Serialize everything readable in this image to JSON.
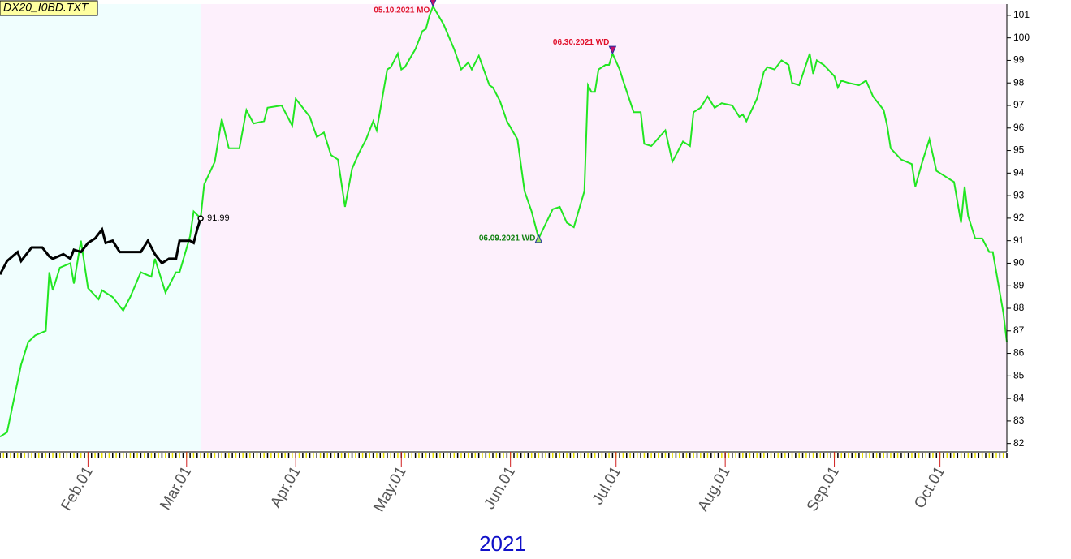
{
  "chart_data": {
    "type": "line",
    "title": "DX20_I0BD.TXT",
    "year_label": "2021",
    "xlim": [
      "2021-01-07",
      "2021-10-20"
    ],
    "xticks": [
      {
        "value": "2021-02-01",
        "label": "Feb.01"
      },
      {
        "value": "2021-03-01",
        "label": "Mar.01"
      },
      {
        "value": "2021-04-01",
        "label": "Apr.01"
      },
      {
        "value": "2021-05-01",
        "label": "May.01"
      },
      {
        "value": "2021-06-01",
        "label": "Jun.01"
      },
      {
        "value": "2021-07-01",
        "label": "Jul.01"
      },
      {
        "value": "2021-08-01",
        "label": "Aug.01"
      },
      {
        "value": "2021-09-01",
        "label": "Sep.01"
      },
      {
        "value": "2021-10-01",
        "label": "Oct.01"
      }
    ],
    "ylim": [
      81.7,
      101.5
    ],
    "yticks": [
      82,
      83,
      84,
      85,
      86,
      87,
      88,
      89,
      90,
      91,
      92,
      93,
      94,
      95,
      96,
      97,
      98,
      99,
      100,
      101
    ],
    "background_colors": [
      "#f0fefe",
      "#fdf0fc"
    ],
    "series": [
      {
        "color": "#22e622",
        "x": [
          "2021-01-07",
          "2021-01-09",
          "2021-01-13",
          "2021-01-15",
          "2021-01-17",
          "2021-01-20",
          "2021-01-21",
          "2021-01-22",
          "2021-01-24",
          "2021-01-27",
          "2021-01-28",
          "2021-01-30",
          "2021-02-01",
          "2021-02-04",
          "2021-02-05",
          "2021-02-08",
          "2021-02-11",
          "2021-02-13",
          "2021-02-16",
          "2021-02-19",
          "2021-02-20",
          "2021-02-23",
          "2021-02-26",
          "2021-02-27",
          "2021-03-02",
          "2021-03-03",
          "2021-03-05",
          "2021-03-06",
          "2021-03-09",
          "2021-03-11",
          "2021-03-13",
          "2021-03-16",
          "2021-03-18",
          "2021-03-20",
          "2021-03-23",
          "2021-03-24",
          "2021-03-28",
          "2021-03-31",
          "2021-04-01",
          "2021-04-05",
          "2021-04-07",
          "2021-04-09",
          "2021-04-11",
          "2021-04-13",
          "2021-04-15",
          "2021-04-17",
          "2021-04-19",
          "2021-04-21",
          "2021-04-23",
          "2021-04-24",
          "2021-04-27",
          "2021-04-28",
          "2021-04-30",
          "2021-05-01",
          "2021-05-02",
          "2021-05-05",
          "2021-05-07",
          "2021-05-08",
          "2021-05-09",
          "2021-05-10",
          "2021-05-13",
          "2021-05-16",
          "2021-05-18",
          "2021-05-20",
          "2021-05-21",
          "2021-05-23",
          "2021-05-26",
          "2021-05-27",
          "2021-05-29",
          "2021-05-31",
          "2021-06-03",
          "2021-06-05",
          "2021-06-07",
          "2021-06-09",
          "2021-06-13",
          "2021-06-15",
          "2021-06-17",
          "2021-06-19",
          "2021-06-22",
          "2021-06-23",
          "2021-06-24",
          "2021-06-25",
          "2021-06-26",
          "2021-06-28",
          "2021-06-29",
          "2021-06-30",
          "2021-07-02",
          "2021-07-03",
          "2021-07-06",
          "2021-07-08",
          "2021-07-09",
          "2021-07-11",
          "2021-07-15",
          "2021-07-17",
          "2021-07-20",
          "2021-07-22",
          "2021-07-23",
          "2021-07-25",
          "2021-07-27",
          "2021-07-29",
          "2021-07-31",
          "2021-08-03",
          "2021-08-05",
          "2021-08-06",
          "2021-08-07",
          "2021-08-10",
          "2021-08-12",
          "2021-08-13",
          "2021-08-15",
          "2021-08-17",
          "2021-08-19",
          "2021-08-20",
          "2021-08-22",
          "2021-08-25",
          "2021-08-26",
          "2021-08-27",
          "2021-08-29",
          "2021-09-01",
          "2021-09-02",
          "2021-09-03",
          "2021-09-05",
          "2021-09-08",
          "2021-09-10",
          "2021-09-12",
          "2021-09-15",
          "2021-09-16",
          "2021-09-17",
          "2021-09-20",
          "2021-09-23",
          "2021-09-24",
          "2021-09-26",
          "2021-09-28",
          "2021-09-30",
          "2021-10-01",
          "2021-10-05",
          "2021-10-07",
          "2021-10-08",
          "2021-10-09",
          "2021-10-11",
          "2021-10-13",
          "2021-10-15",
          "2021-10-16",
          "2021-10-19",
          "2021-10-20"
        ],
        "values": [
          82.3,
          82.5,
          85.5,
          86.5,
          86.8,
          87,
          89.6,
          88.8,
          89.8,
          90,
          89.1,
          91,
          88.9,
          88.4,
          88.8,
          88.5,
          87.9,
          88.5,
          89.6,
          89.4,
          90.2,
          88.7,
          89.6,
          89.6,
          91.2,
          92.3,
          92,
          93.5,
          94.5,
          96.4,
          95.1,
          95.1,
          96.8,
          96.2,
          96.3,
          96.9,
          97,
          96.1,
          97.3,
          96.5,
          95.6,
          95.8,
          94.8,
          94.6,
          92.5,
          94.2,
          94.9,
          95.5,
          96.3,
          95.9,
          98.6,
          98.7,
          99.3,
          98.6,
          98.7,
          99.5,
          100.3,
          100.4,
          101,
          101.4,
          100.6,
          99.5,
          98.6,
          98.9,
          98.6,
          99.2,
          97.9,
          97.8,
          97.2,
          96.3,
          95.5,
          93.2,
          92.3,
          91.1,
          92.4,
          92.5,
          91.8,
          91.6,
          93.2,
          97.9,
          97.6,
          97.6,
          98.6,
          98.8,
          98.8,
          99.3,
          98.6,
          98.1,
          96.7,
          96.7,
          95.3,
          95.2,
          95.9,
          94.5,
          95.4,
          95.2,
          96.7,
          96.9,
          97.4,
          96.9,
          97.1,
          97,
          96.5,
          96.6,
          96.3,
          97.3,
          98.5,
          98.7,
          98.6,
          99,
          98.8,
          98,
          97.9,
          99.3,
          98.4,
          99,
          98.8,
          98.3,
          97.8,
          98.1,
          98,
          97.9,
          98.1,
          97.4,
          96.8,
          96.1,
          95.1,
          94.6,
          94.4,
          93.4,
          94.5,
          95.5,
          94.1,
          94,
          93.6,
          91.8,
          93.4,
          92.1,
          91.1,
          91.1,
          90.5,
          90.5,
          87.8,
          86.5
        ]
      },
      {
        "color": "#000000",
        "x": [
          "2021-01-07",
          "2021-01-09",
          "2021-01-12",
          "2021-01-13",
          "2021-01-16",
          "2021-01-19",
          "2021-01-21",
          "2021-01-22",
          "2021-01-25",
          "2021-01-27",
          "2021-01-28",
          "2021-01-30",
          "2021-02-01",
          "2021-02-03",
          "2021-02-05",
          "2021-02-06",
          "2021-02-08",
          "2021-02-10",
          "2021-02-13",
          "2021-02-16",
          "2021-02-18",
          "2021-02-20",
          "2021-02-22",
          "2021-02-24",
          "2021-02-26",
          "2021-02-27",
          "2021-03-02",
          "2021-03-03",
          "2021-03-04",
          "2021-03-05"
        ],
        "values": [
          89.5,
          90.1,
          90.5,
          90.1,
          90.7,
          90.7,
          90.3,
          90.2,
          90.4,
          90.2,
          90.6,
          90.5,
          90.9,
          91.1,
          91.5,
          90.9,
          91,
          90.5,
          90.5,
          90.5,
          91,
          90.4,
          90,
          90.2,
          90.2,
          91,
          91,
          90.9,
          91.5,
          91.99
        ],
        "end_label": true
      }
    ],
    "annotations": [
      {
        "text": "05.10.2021 MO",
        "x": "2021-05-10",
        "y": 101.4,
        "color": "#e0102a",
        "marker": "down"
      },
      {
        "text": "06.30.2021 WD",
        "x": "2021-06-30",
        "y": 99.3,
        "color": "#e0102a",
        "marker": "down"
      },
      {
        "text": "06.09.2021 WD",
        "x": "2021-06-09",
        "y": 91.1,
        "color": "#108010",
        "marker": "up"
      }
    ]
  }
}
